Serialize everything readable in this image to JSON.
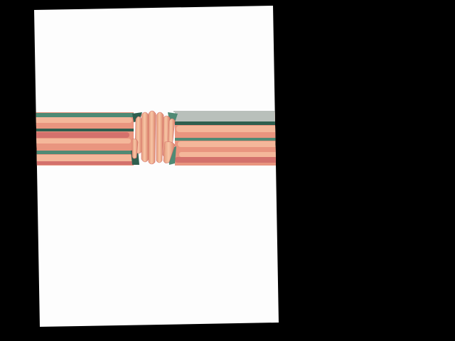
{
  "image": {
    "subject": "carrots",
    "colors": {
      "background": "#000000",
      "paper": "#fdfdfd",
      "carrot_light": "#f4b79a",
      "carrot_mid": "#e9957f",
      "carrot_dark": "#d4716c",
      "stem_green": "#4f8a74",
      "stem_dark": "#2f5f4f",
      "gray_band": "#b9c0bb"
    }
  }
}
